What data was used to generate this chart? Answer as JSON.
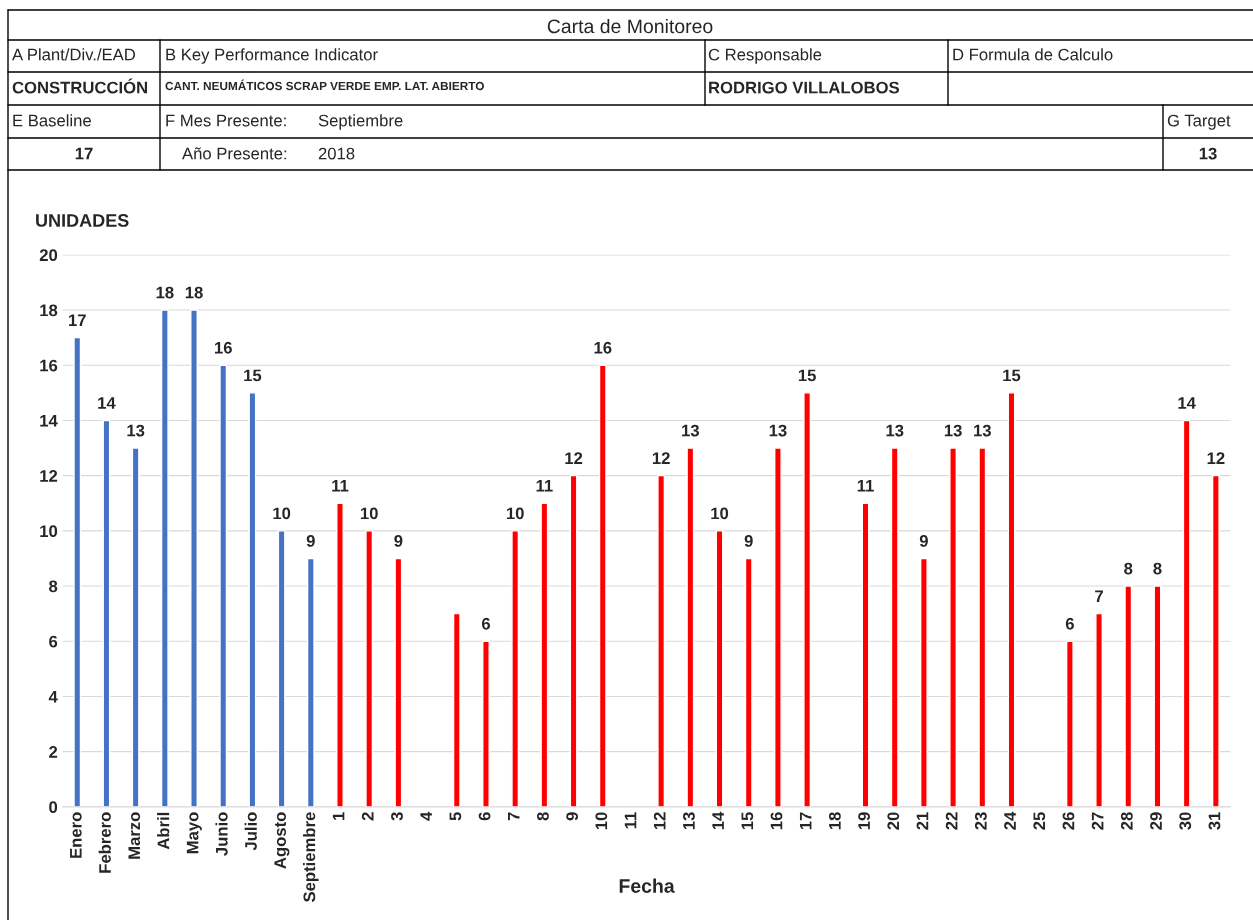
{
  "chart_data": {
    "type": "bar",
    "title": "Carta de Monitoreo",
    "ylabel": "UNIDADES",
    "xlabel": "Fecha",
    "categories": [
      "Enero",
      "Febrero",
      "Marzo",
      "Abril",
      "Mayo",
      "Junio",
      "Julio",
      "Agosto",
      "Septiembre",
      "1",
      "2",
      "3",
      "4",
      "5",
      "6",
      "7",
      "8",
      "9",
      "10",
      "11",
      "12",
      "13",
      "14",
      "15",
      "16",
      "17",
      "18",
      "19",
      "20",
      "21",
      "22",
      "23",
      "24",
      "25",
      "26",
      "27",
      "28",
      "29",
      "30",
      "31"
    ],
    "values": [
      17,
      14,
      13,
      18,
      18,
      16,
      15,
      10,
      9,
      11,
      10,
      9,
      null,
      7,
      6,
      10,
      11,
      12,
      16,
      null,
      12,
      13,
      10,
      9,
      13,
      15,
      null,
      11,
      13,
      9,
      13,
      13,
      15,
      null,
      6,
      7,
      8,
      8,
      14,
      12
    ],
    "value_labels": [
      "17",
      "14",
      "13",
      "18",
      "18",
      "16",
      "15",
      "10",
      "9",
      "11",
      "10",
      "9",
      null,
      null,
      "6",
      "10",
      "11",
      "12",
      "16",
      null,
      "12",
      "13",
      "10",
      "9",
      "13",
      "15",
      null,
      "11",
      "13",
      "9",
      "13",
      "13",
      "15",
      null,
      "6",
      "7",
      "8",
      "8",
      "14",
      "12"
    ],
    "colors": [
      "#4472c4",
      "#4472c4",
      "#4472c4",
      "#4472c4",
      "#4472c4",
      "#4472c4",
      "#4472c4",
      "#4472c4",
      "#4472c4",
      "#ff0000",
      "#ff0000",
      "#ff0000",
      "#ff0000",
      "#ff0000",
      "#ff0000",
      "#ff0000",
      "#ff0000",
      "#ff0000",
      "#ff0000",
      "#ff0000",
      "#ff0000",
      "#ff0000",
      "#ff0000",
      "#ff0000",
      "#ff0000",
      "#ff0000",
      "#ff0000",
      "#ff0000",
      "#ff0000",
      "#ff0000",
      "#ff0000",
      "#ff0000",
      "#ff0000",
      "#ff0000",
      "#ff0000",
      "#ff0000",
      "#ff0000",
      "#ff0000",
      "#ff0000",
      "#ff0000"
    ],
    "ylim": [
      0,
      20
    ],
    "yticks": [
      0,
      2,
      4,
      6,
      8,
      10,
      12,
      14,
      16,
      18,
      20
    ],
    "grid": "y",
    "annotations": [
      "A Plant/Div./EAD",
      "CONSTRUCCIÓN",
      "B Key Performance Indicator",
      "CANT. NEUMÁTICOS SCRAP VERDE EMP. LAT. ABIERTO",
      "C Responsable",
      "RODRIGO VILLALOBOS",
      "D Formula de Calculo",
      "E Baseline",
      "17",
      "F Mes Presente:",
      "Septiembre",
      "Año Presente:",
      "2018",
      "G Target",
      "13"
    ]
  }
}
